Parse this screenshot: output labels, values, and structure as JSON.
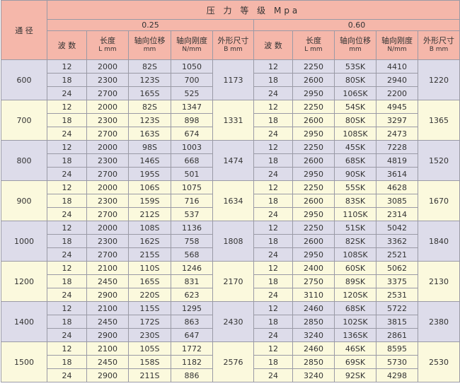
{
  "header": {
    "diameter": "通 径",
    "pressure_class": "压 力 等 级 Mpa",
    "pressures": [
      "0.25",
      "0.60"
    ],
    "columns": [
      {
        "name": "波 数",
        "unit": ""
      },
      {
        "name": "长度",
        "unit": "L mm"
      },
      {
        "name": "轴向位移",
        "unit": "mm"
      },
      {
        "name": "轴向刚度",
        "unit": "N/mm"
      },
      {
        "name": "外形尺寸",
        "unit": "B mm"
      }
    ]
  },
  "colors": {
    "header": "#f5b7aa",
    "band_a": "#dddcea",
    "band_b": "#fbf9dd"
  },
  "groups": [
    {
      "dn": "600",
      "b025": "1173",
      "b060": "1220",
      "rows": [
        [
          "12",
          "2000",
          "82S",
          "1050",
          "12",
          "2250",
          "53SK",
          "4410"
        ],
        [
          "18",
          "2300",
          "123S",
          "700",
          "18",
          "2600",
          "80SK",
          "2940"
        ],
        [
          "24",
          "2700",
          "165S",
          "525",
          "24",
          "2950",
          "106SK",
          "2200"
        ]
      ]
    },
    {
      "dn": "700",
      "b025": "1331",
      "b060": "1365",
      "rows": [
        [
          "12",
          "2000",
          "82S",
          "1347",
          "12",
          "2250",
          "54SK",
          "4945"
        ],
        [
          "18",
          "2300",
          "123S",
          "898",
          "18",
          "2600",
          "80SK",
          "3297"
        ],
        [
          "24",
          "2700",
          "163S",
          "674",
          "24",
          "2950",
          "108SK",
          "2473"
        ]
      ]
    },
    {
      "dn": "800",
      "b025": "1474",
      "b060": "1520",
      "rows": [
        [
          "12",
          "2000",
          "98S",
          "1003",
          "12",
          "2250",
          "45SK",
          "7228"
        ],
        [
          "18",
          "2300",
          "146S",
          "668",
          "18",
          "2600",
          "68SK",
          "4819"
        ],
        [
          "24",
          "2700",
          "195S",
          "501",
          "24",
          "2950",
          "90SK",
          "3614"
        ]
      ]
    },
    {
      "dn": "900",
      "b025": "1634",
      "b060": "1670",
      "rows": [
        [
          "12",
          "2000",
          "106S",
          "1075",
          "12",
          "2250",
          "55SK",
          "4628"
        ],
        [
          "18",
          "2300",
          "159S",
          "716",
          "18",
          "2600",
          "83SK",
          "3085"
        ],
        [
          "24",
          "2700",
          "212S",
          "537",
          "24",
          "2950",
          "110SK",
          "2314"
        ]
      ]
    },
    {
      "dn": "1000",
      "b025": "1808",
      "b060": "1840",
      "rows": [
        [
          "12",
          "2000",
          "108S",
          "1136",
          "12",
          "2250",
          "51SK",
          "5042"
        ],
        [
          "18",
          "2300",
          "162S",
          "758",
          "18",
          "2600",
          "82SK",
          "3362"
        ],
        [
          "24",
          "2700",
          "215S",
          "568",
          "24",
          "2950",
          "108SK",
          "2521"
        ]
      ]
    },
    {
      "dn": "1200",
      "b025": "2170",
      "b060": "2130",
      "rows": [
        [
          "12",
          "2100",
          "110S",
          "1246",
          "12",
          "2400",
          "60SK",
          "5062"
        ],
        [
          "18",
          "2450",
          "165S",
          "831",
          "18",
          "2750",
          "89SK",
          "3375"
        ],
        [
          "24",
          "2900",
          "220S",
          "623",
          "24",
          "3110",
          "120SK",
          "2531"
        ]
      ]
    },
    {
      "dn": "1400",
      "b025": "2430",
      "b060": "2380",
      "rows": [
        [
          "12",
          "2100",
          "115S",
          "1295",
          "12",
          "2460",
          "68SK",
          "5722"
        ],
        [
          "18",
          "2450",
          "172S",
          "863",
          "18",
          "2850",
          "102SK",
          "3815"
        ],
        [
          "24",
          "2900",
          "230S",
          "647",
          "24",
          "3240",
          "136SK",
          "2861"
        ]
      ]
    },
    {
      "dn": "1500",
      "b025": "2576",
      "b060": "2530",
      "rows": [
        [
          "12",
          "2100",
          "105S",
          "1772",
          "12",
          "2460",
          "46SK",
          "8595"
        ],
        [
          "18",
          "2450",
          "158S",
          "1182",
          "18",
          "2850",
          "69SK",
          "5730"
        ],
        [
          "24",
          "2900",
          "211S",
          "886",
          "24",
          "3240",
          "92SK",
          "4298"
        ]
      ]
    }
  ]
}
